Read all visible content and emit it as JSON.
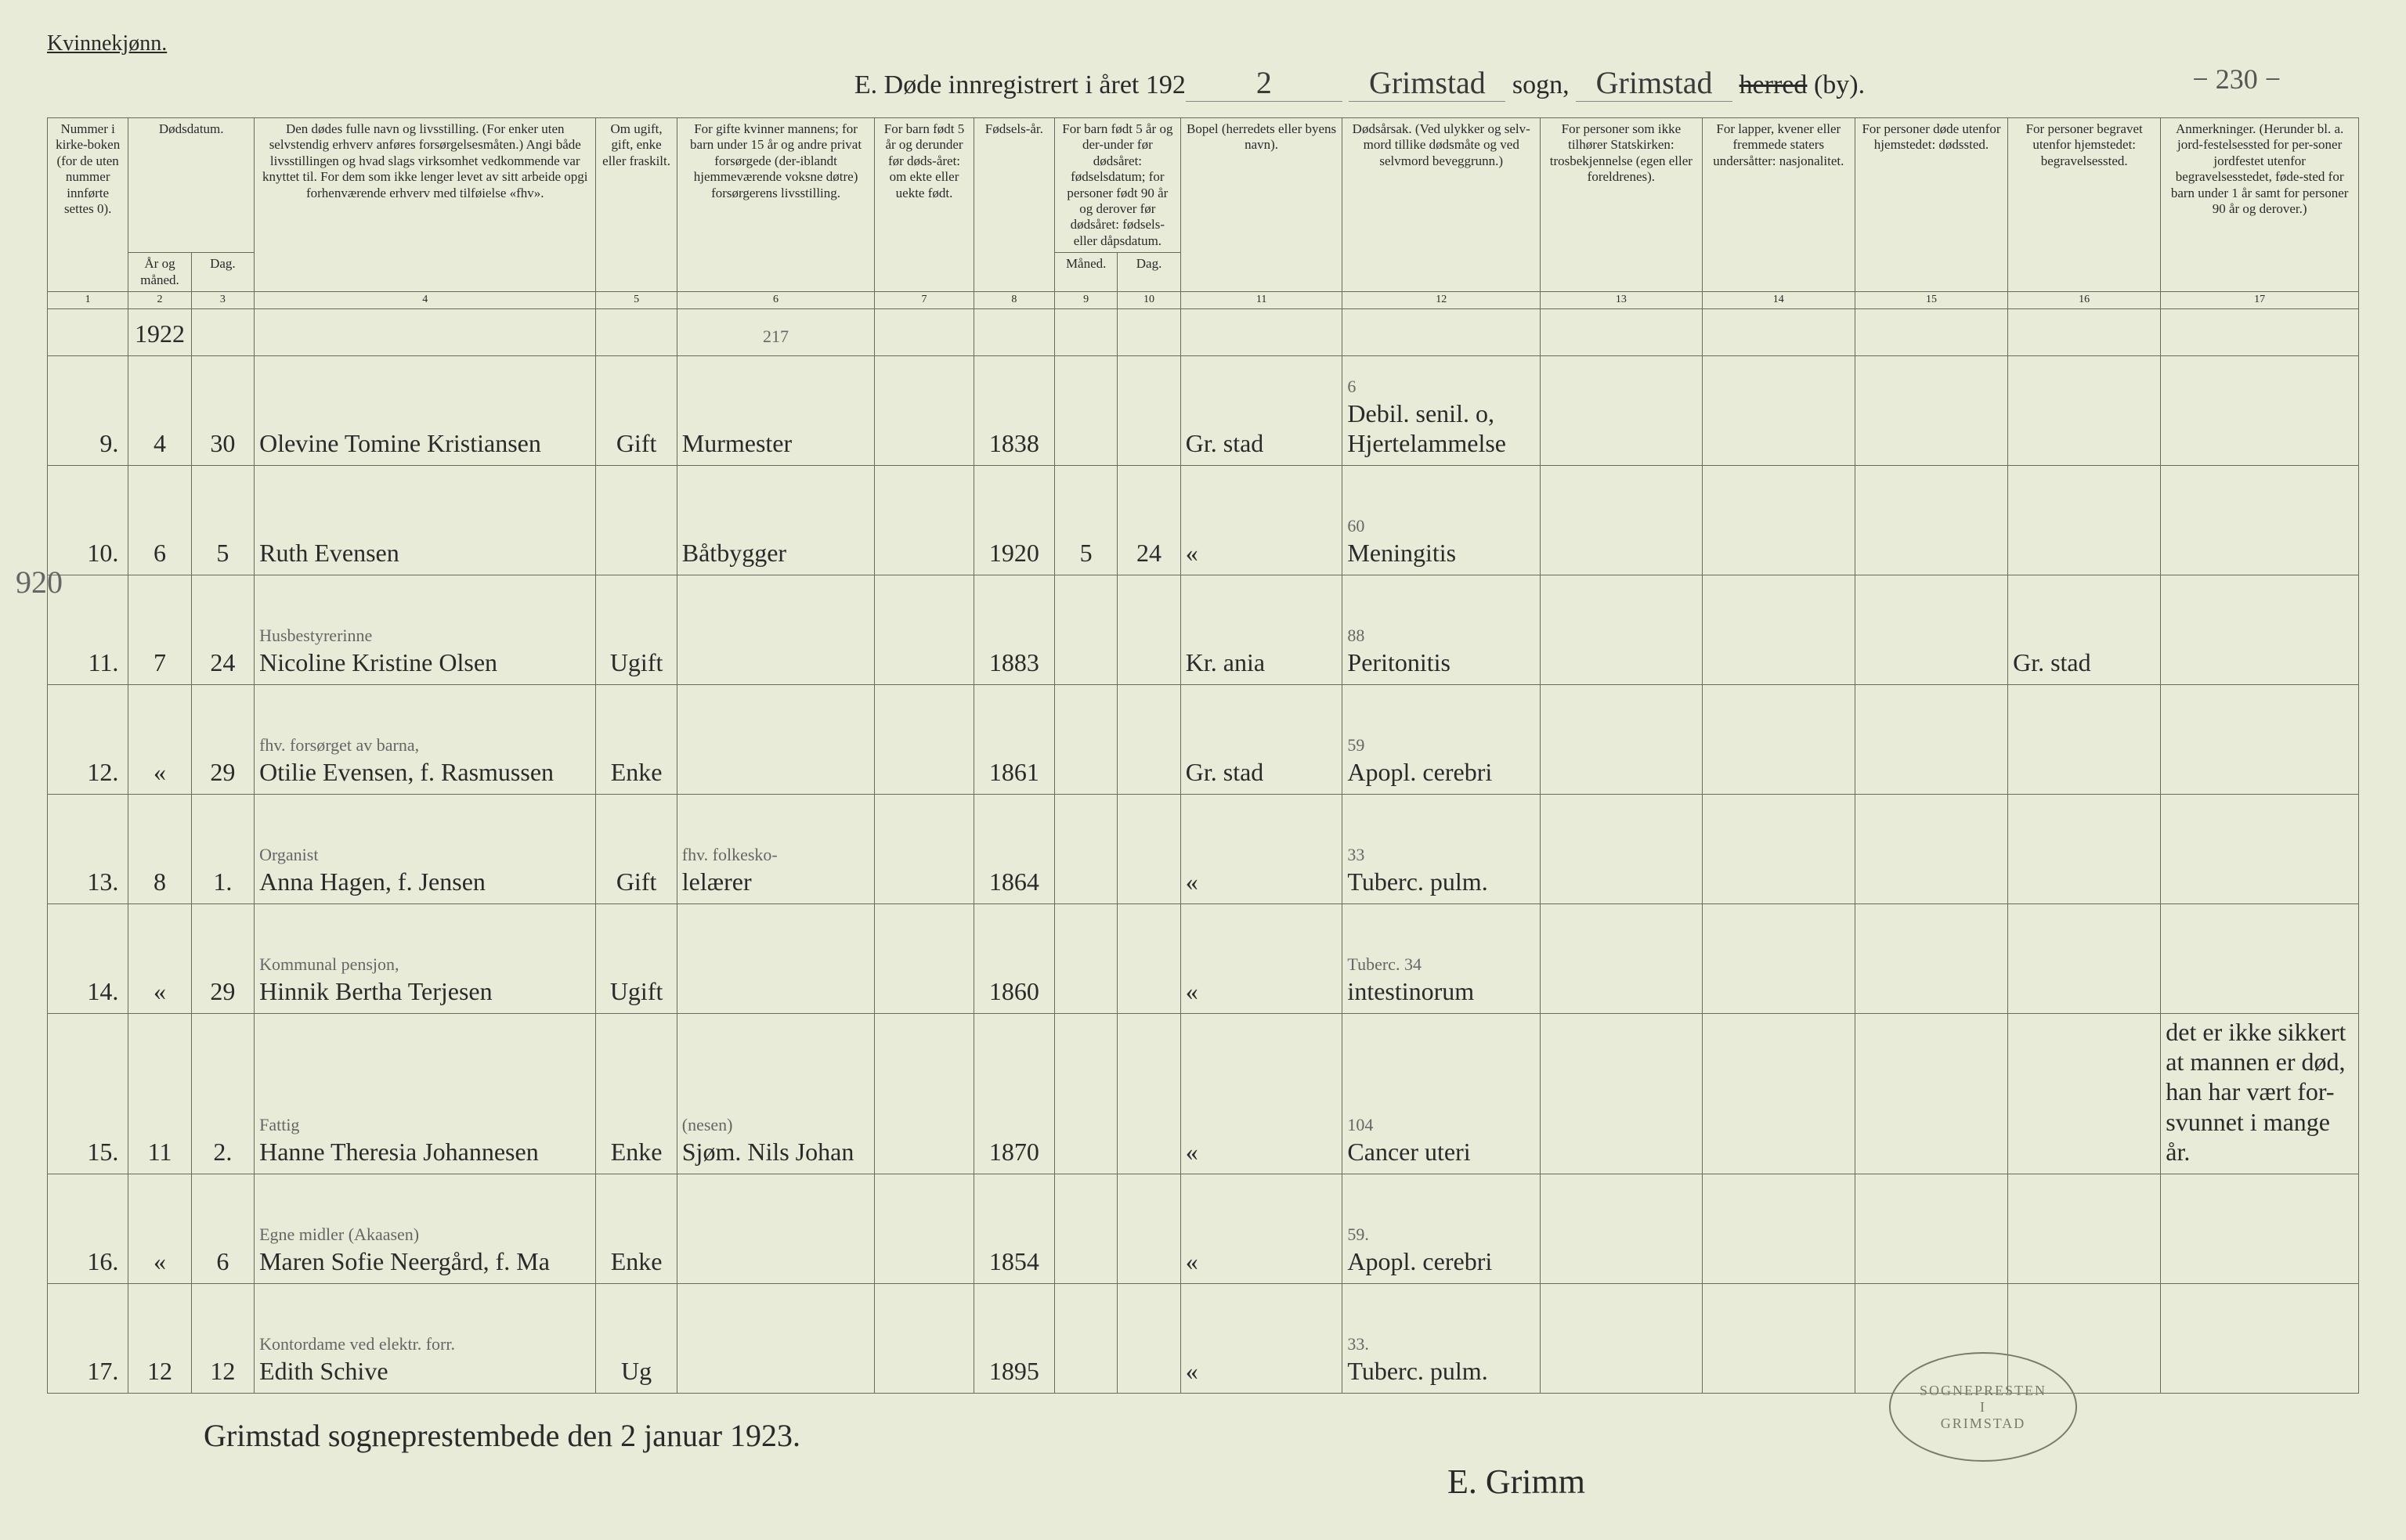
{
  "page_number_top": "− 230 −",
  "margin_note": "920",
  "gender_label": "Kvinnekjønn.",
  "title": {
    "prefix": "E.  Døde innregistrert i året 192",
    "year_suffix": "2",
    "sogn_label": "sogn,",
    "sogn_value": "Grimstad",
    "herred_struck": "herred",
    "by_label": "(by).",
    "herred_value": "Grimstad"
  },
  "headers": {
    "c1": "Nummer i kirke-boken (for de uten nummer innførte settes 0).",
    "c2_group": "Dødsdatum.",
    "c2": "År og måned.",
    "c3": "Dag.",
    "c4": "Den dødes fulle navn og livsstilling. (For enker uten selvstendig erhverv anføres forsørgelsesmåten.) Angi både livsstillingen og hvad slags virksomhet vedkommende var knyttet til. For dem som ikke lenger levet av sitt arbeide opgi forhenværende erhverv med tilføielse «fhv».",
    "c5": "Om ugift, gift, enke eller fraskilt.",
    "c6": "For gifte kvinner mannens; for barn under 15 år og andre privat forsørgede (der-iblandt hjemmeværende voksne døtre) forsørgerens livsstilling.",
    "c7": "For barn født 5 år og derunder før døds-året: om ekte eller uekte født.",
    "c8": "Fødsels-år.",
    "c9_group": "For barn født 5 år og der-under før dødsåret: fødselsdatum; for personer født 90 år og derover før dødsåret: fødsels- eller dåpsdatum.",
    "c9": "Måned.",
    "c10": "Dag.",
    "c11": "Bopel (herredets eller byens navn).",
    "c12": "Dødsårsak. (Ved ulykker og selv-mord tillike dødsmåte og ved selvmord beveggrunn.)",
    "c13": "For personer som ikke tilhører Statskirken: trosbekjennelse (egen eller foreldrenes).",
    "c14": "For lapper, kvener eller fremmede staters undersåtter: nasjonalitet.",
    "c15": "For personer døde utenfor hjemstedet: dødssted.",
    "c16": "For personer begravet utenfor hjemstedet: begravelsessted.",
    "c17": "Anmerkninger. (Herunder bl. a. jord-festelsessted for per-soner jordfestet utenfor begravelsesstedet, føde-sted for barn under 1 år samt for personer 90 år og derover.)"
  },
  "colnums": [
    "1",
    "2",
    "3",
    "4",
    "5",
    "6",
    "7",
    "8",
    "9",
    "10",
    "11",
    "12",
    "13",
    "14",
    "15",
    "16",
    "17"
  ],
  "year_row": {
    "year": "1922",
    "c6_note": "217"
  },
  "rows": [
    {
      "num": "9.",
      "month": "4",
      "day": "30",
      "name": "Olevine Tomine Kristiansen",
      "status": "Gift",
      "provider": "Murmester",
      "birth_year": "1838",
      "residence": "Gr. stad",
      "cause_ann": "6",
      "cause": "Debil. senil. o, Hjertelammelse"
    },
    {
      "num": "10.",
      "month": "6",
      "day": "5",
      "name": "Ruth Evensen",
      "provider": "Båtbygger",
      "birth_year": "1920",
      "b_month": "5",
      "b_day": "24",
      "residence": "«",
      "cause_ann": "60",
      "cause": "Meningitis"
    },
    {
      "num": "11.",
      "month": "7",
      "day": "24",
      "name_ann": "Husbestyrerinne",
      "name": "Nicoline Kristine Olsen",
      "status": "Ugift",
      "birth_year": "1883",
      "residence": "Kr. ania",
      "cause_ann": "88",
      "cause": "Peritonitis",
      "burial": "Gr. stad"
    },
    {
      "num": "12.",
      "month": "«",
      "day": "29",
      "name_ann": "fhv. forsørget av barna,",
      "name": "Otilie Evensen, f. Rasmussen",
      "status": "Enke",
      "birth_year": "1861",
      "residence": "Gr. stad",
      "cause_ann": "59",
      "cause": "Apopl. cerebri"
    },
    {
      "num": "13.",
      "month": "8",
      "day": "1.",
      "name_ann": "Organist",
      "name": "Anna Hagen, f. Jensen",
      "status": "Gift",
      "provider_ann": "fhv. folkesko-",
      "provider": "lelærer",
      "birth_year": "1864",
      "residence": "«",
      "cause_ann": "33",
      "cause": "Tuberc. pulm."
    },
    {
      "num": "14.",
      "month": "«",
      "day": "29",
      "name_ann": "Kommunal pensjon,",
      "name": "Hinnik Bertha Terjesen",
      "status": "Ugift",
      "birth_year": "1860",
      "residence": "«",
      "cause_ann": "Tuberc. 34",
      "cause": "intestinorum"
    },
    {
      "num": "15.",
      "month": "11",
      "day": "2.",
      "name_ann": "Fattig",
      "name": "Hanne Theresia Johannesen",
      "status": "Enke",
      "provider_ann": "(nesen)",
      "provider": "Sjøm. Nils Johan",
      "birth_year": "1870",
      "residence": "«",
      "cause_ann": "104",
      "cause": "Cancer uteri",
      "remarks": "det er ikke sikkert at mannen er død, han har vært for-svunnet i mange år."
    },
    {
      "num": "16.",
      "month": "«",
      "day": "6",
      "name_ann": "Egne midler     (Akaasen)",
      "name": "Maren Sofie Neergård, f. Ma",
      "status": "Enke",
      "birth_year": "1854",
      "residence": "«",
      "cause_ann": "59.",
      "cause": "Apopl. cerebri"
    },
    {
      "num": "17.",
      "month": "12",
      "day": "12",
      "name_ann": "Kontordame ved elektr. forr.",
      "name": "Edith Schive",
      "status": "Ug",
      "birth_year": "1895",
      "residence": "«",
      "cause_ann": "33.",
      "cause": "Tuberc. pulm."
    }
  ],
  "footer": "Grimstad sogneprestembede den 2 januar 1923.",
  "signature": "E. Grimm",
  "stamp": {
    "top": "SOGNEPRESTEN",
    "mid": "I",
    "bot": "GRIMSTAD"
  }
}
